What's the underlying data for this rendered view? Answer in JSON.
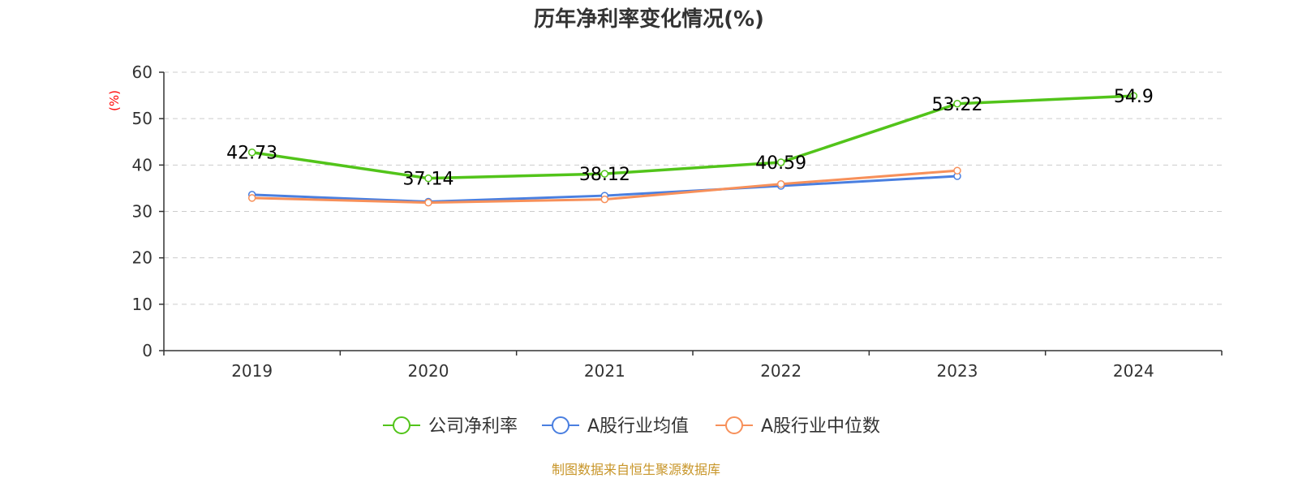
{
  "chart_data": {
    "type": "line",
    "title": "历年净利率变化情况(%)",
    "ylabel": "(%)",
    "categories": [
      "2019",
      "2020",
      "2021",
      "2022",
      "2023",
      "2024"
    ],
    "ylim": [
      0,
      60
    ],
    "yticks": [
      0,
      10,
      20,
      30,
      40,
      50,
      60
    ],
    "grid": true,
    "legend_position": "bottom",
    "series": [
      {
        "name": "公司净利率",
        "color": "#52c41a",
        "values": [
          42.73,
          37.14,
          38.12,
          40.59,
          53.22,
          54.9
        ],
        "labels": [
          "42.73",
          "37.14",
          "38.12",
          "40.59",
          "53.22",
          "54.9"
        ]
      },
      {
        "name": "A股行业均值",
        "color": "#4a7fe0",
        "values": [
          33.6,
          32.1,
          33.4,
          35.5,
          37.6,
          null
        ]
      },
      {
        "name": "A股行业中位数",
        "color": "#f7905a",
        "values": [
          32.9,
          31.9,
          32.6,
          35.9,
          38.8,
          null
        ]
      }
    ],
    "source": "制图数据来自恒生聚源数据库"
  }
}
